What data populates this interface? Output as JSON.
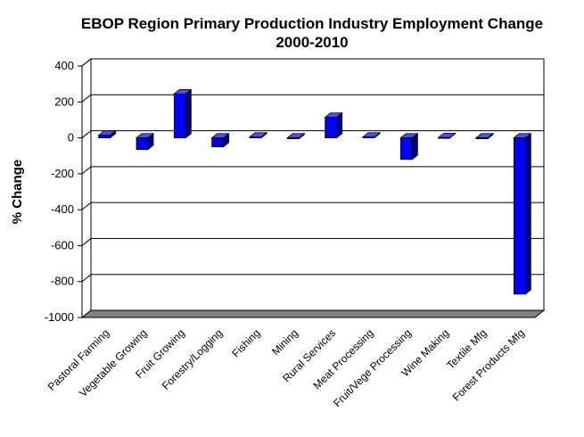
{
  "chart_data": {
    "type": "bar",
    "title_lines": [
      "EBOP Region Primary Production Industry Employment Change",
      "2000-2010"
    ],
    "xlabel": "",
    "ylabel": "% Change",
    "ylim": [
      -1000,
      400
    ],
    "yticks": [
      400,
      200,
      0,
      -200,
      -400,
      -600,
      -800,
      -1000
    ],
    "ytick_labels": [
      "400",
      "200",
      "0",
      "-200",
      "-400",
      "-600",
      "-800",
      "-1000"
    ],
    "grid": true,
    "legend": "none",
    "categories": [
      "Pastoral Farming",
      "Vegetable Growing",
      "Fruit Growing",
      "Forestry/Logging",
      "Fishing",
      "Mining",
      "Rural Services",
      "Meat Processing",
      "Fruit/Vege Processing",
      "Wine Making",
      "Textile Mfg",
      "Forest Products Mfg"
    ],
    "values": [
      15,
      -65,
      245,
      -50,
      5,
      -5,
      115,
      5,
      -120,
      2,
      -5,
      -870
    ],
    "colors": {
      "bar_front": "#0000ff",
      "bar_side": "#00007f",
      "bar_top": "#4d4dff",
      "floor": "#808080"
    }
  }
}
